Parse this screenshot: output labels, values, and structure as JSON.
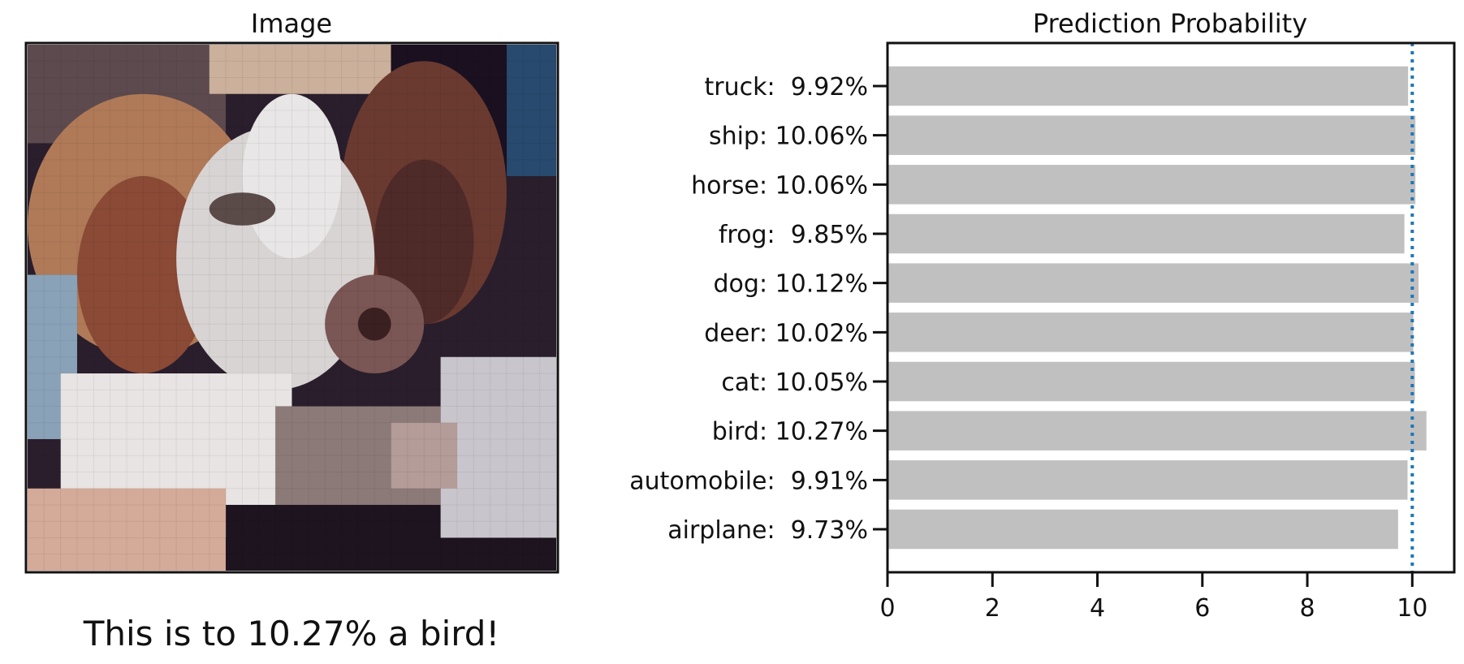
{
  "image_panel": {
    "title": "Image",
    "caption": "This is to 10.27% a bird!",
    "pixels": {
      "cols": 32,
      "rows": 32,
      "bg": "#2a1e2c",
      "regions": [
        {
          "shape": "rect",
          "x": 0,
          "y": 0,
          "w": 32,
          "h": 32,
          "color": "#2a1e2c"
        },
        {
          "shape": "rect",
          "x": 0,
          "y": 0,
          "w": 12,
          "h": 6,
          "color": "#5d4a4e"
        },
        {
          "shape": "rect",
          "x": 11,
          "y": 0,
          "w": 11,
          "h": 3,
          "color": "#cbb09c"
        },
        {
          "shape": "rect",
          "x": 22,
          "y": 0,
          "w": 10,
          "h": 8,
          "color": "#1a1020"
        },
        {
          "shape": "rect",
          "x": 29,
          "y": 0,
          "w": 3,
          "h": 8,
          "color": "#274a6e"
        },
        {
          "shape": "ellipse",
          "cx": 7,
          "cy": 11,
          "rx": 7,
          "ry": 8,
          "color": "#b07a58"
        },
        {
          "shape": "ellipse",
          "cx": 7,
          "cy": 14,
          "rx": 4,
          "ry": 6,
          "color": "#8a4a36"
        },
        {
          "shape": "ellipse",
          "cx": 24,
          "cy": 9,
          "rx": 5,
          "ry": 8,
          "color": "#6a3a30"
        },
        {
          "shape": "ellipse",
          "cx": 24,
          "cy": 12,
          "rx": 3,
          "ry": 5,
          "color": "#4e2a28"
        },
        {
          "shape": "ellipse",
          "cx": 15,
          "cy": 13,
          "rx": 6,
          "ry": 8,
          "color": "#d8d4d4"
        },
        {
          "shape": "ellipse",
          "cx": 16,
          "cy": 8,
          "rx": 3,
          "ry": 5,
          "color": "#e8e6e6"
        },
        {
          "shape": "ellipse",
          "cx": 13,
          "cy": 10,
          "rx": 2,
          "ry": 1,
          "color": "#5a4a48"
        },
        {
          "shape": "ellipse",
          "cx": 21,
          "cy": 17,
          "rx": 3,
          "ry": 3,
          "color": "#7a5654"
        },
        {
          "shape": "ellipse",
          "cx": 21,
          "cy": 17,
          "rx": 1,
          "ry": 1,
          "color": "#3a2020"
        },
        {
          "shape": "rect",
          "x": 0,
          "y": 14,
          "w": 3,
          "h": 10,
          "color": "#8aa2b8"
        },
        {
          "shape": "rect",
          "x": 2,
          "y": 20,
          "w": 14,
          "h": 10,
          "color": "#e8e4e4"
        },
        {
          "shape": "rect",
          "x": 0,
          "y": 27,
          "w": 12,
          "h": 5,
          "color": "#d4aa98"
        },
        {
          "shape": "rect",
          "x": 12,
          "y": 28,
          "w": 20,
          "h": 4,
          "color": "#1e1420"
        },
        {
          "shape": "rect",
          "x": 15,
          "y": 22,
          "w": 10,
          "h": 6,
          "color": "#8c7a78"
        },
        {
          "shape": "rect",
          "x": 25,
          "y": 19,
          "w": 7,
          "h": 11,
          "color": "#c8c6cc"
        },
        {
          "shape": "rect",
          "x": 22,
          "y": 23,
          "w": 4,
          "h": 4,
          "color": "#b49c98"
        }
      ]
    }
  },
  "chart_data": {
    "type": "bar",
    "orientation": "horizontal",
    "title": "Prediction Probability",
    "xlabel": "",
    "ylabel": "",
    "categories": [
      "airplane",
      "automobile",
      "bird",
      "cat",
      "deer",
      "dog",
      "frog",
      "horse",
      "ship",
      "truck"
    ],
    "category_labels": [
      "airplane:  9.73%",
      "automobile:  9.91%",
      "bird: 10.27%",
      "cat: 10.05%",
      "deer: 10.02%",
      "dog: 10.12%",
      "frog:  9.85%",
      "horse: 10.06%",
      "ship: 10.06%",
      "truck:  9.92%"
    ],
    "values": [
      9.73,
      9.91,
      10.27,
      10.05,
      10.02,
      10.12,
      9.85,
      10.06,
      10.06,
      9.92
    ],
    "xlim": [
      0,
      10.8
    ],
    "xticks": [
      0,
      2,
      4,
      6,
      8,
      10
    ],
    "reference_line": {
      "value": 10,
      "style": "dotted",
      "color": "#1f77b4"
    },
    "bar_color": "#c0c0c0",
    "grid": false
  }
}
